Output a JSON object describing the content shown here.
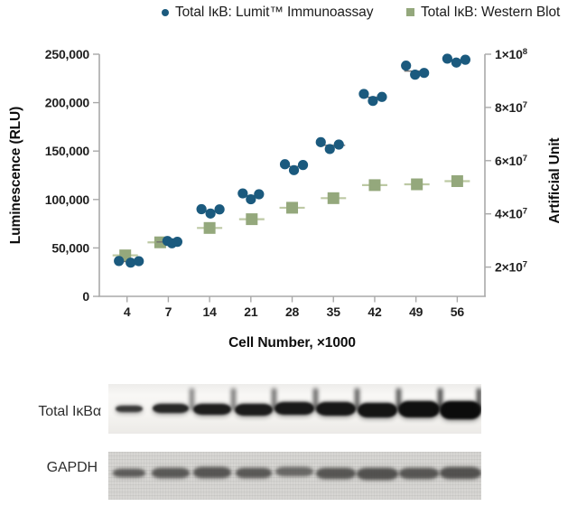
{
  "legend": {
    "items": [
      {
        "label": "Total IκB: Lumit™ Immunoassay",
        "marker": "circle-icon",
        "color": "#1b5a7e"
      },
      {
        "label": "Total IκB: Western Blot",
        "marker": "square-icon",
        "color": "#94a87c"
      }
    ]
  },
  "chart_data": {
    "type": "scatter",
    "grid": false,
    "legend_position": "top",
    "x": {
      "label": "Cell Number, ×1000",
      "categories": [
        "4",
        "7",
        "14",
        "21",
        "28",
        "35",
        "42",
        "49",
        "56"
      ]
    },
    "y_left": {
      "label": "Luminescence (RLU)",
      "range": [
        0,
        250000
      ],
      "tick_values": [
        0,
        50000,
        100000,
        150000,
        200000,
        250000
      ],
      "tick_labels": [
        "0",
        "50,000",
        "100,000",
        "150,000",
        "200,000",
        "250,000"
      ]
    },
    "y_right": {
      "label": "Artificial Unit",
      "range": [
        9000000,
        100000000
      ],
      "tick_values": [
        20000000,
        40000000,
        60000000,
        80000000,
        100000000
      ],
      "tick_labels": [
        {
          "base": "2×10",
          "exp": "7"
        },
        {
          "base": "4×10",
          "exp": "7"
        },
        {
          "base": "6×10",
          "exp": "7"
        },
        {
          "base": "8×10",
          "exp": "7"
        },
        {
          "base": "1×10",
          "exp": "8"
        }
      ]
    },
    "series": [
      {
        "name": "Total IκB: Lumit™ Immunoassay",
        "marker": "circle",
        "axis": "left",
        "color": "#1b5a7e",
        "mean_line_color": "#6f6f6f",
        "replicates": [
          [
            36500,
            34800,
            36300
          ],
          [
            57200,
            54800,
            56300
          ],
          [
            90000,
            85500,
            89800
          ],
          [
            106300,
            100200,
            105400
          ],
          [
            136400,
            130300,
            135600
          ],
          [
            159200,
            152100,
            156700
          ],
          [
            209000,
            201800,
            205900
          ],
          [
            238200,
            228900,
            230700
          ],
          [
            245400,
            241400,
            244300
          ]
        ],
        "jitter_dx": [
          [
            -9,
            4,
            13
          ],
          [
            -1,
            4,
            10
          ],
          [
            -9,
            1,
            11
          ],
          [
            -9,
            0,
            9
          ],
          [
            -8,
            2,
            12
          ],
          [
            -14,
            -4,
            6
          ],
          [
            -12,
            -2,
            8
          ],
          [
            -11,
            -1,
            9
          ],
          [
            -11,
            -1,
            9
          ]
        ]
      },
      {
        "name": "Total IκB: Western Blot",
        "marker": "square",
        "axis": "right",
        "color": "#94a87c",
        "errorbar_color": "#bdc9a4",
        "values": [
          24400000,
          29300000,
          34700000,
          38000000,
          42300000,
          45900000,
          50800000,
          51100000,
          52300000
        ],
        "dx": [
          -2,
          -9,
          0,
          1,
          0,
          0,
          0,
          1,
          0
        ]
      }
    ]
  },
  "blots": {
    "rows": [
      {
        "label": "Total IκBα",
        "band_heights": [
          7,
          10,
          12,
          13,
          14,
          15,
          16,
          18,
          20
        ],
        "band_widths": [
          30,
          40,
          42,
          42,
          44,
          44,
          44,
          46,
          46
        ],
        "band_opacities": [
          0.8,
          0.88,
          0.92,
          0.93,
          0.94,
          0.95,
          0.96,
          0.98,
          1
        ],
        "band_dy": [
          0,
          -1,
          0,
          1,
          -1,
          0,
          1,
          0,
          1
        ]
      },
      {
        "label": "GAPDH",
        "band_heights": [
          9,
          11,
          12,
          11,
          10,
          12,
          13,
          12,
          13
        ],
        "band_widths": [
          36,
          42,
          42,
          40,
          42,
          44,
          46,
          44,
          46
        ],
        "band_opacities": [
          0.78,
          0.8,
          0.82,
          0.8,
          0.7,
          0.82,
          0.85,
          0.82,
          0.85
        ],
        "band_dy": [
          -3,
          -3,
          -4,
          -3,
          -5,
          -3,
          -2,
          -3,
          -3
        ]
      }
    ]
  },
  "colors": {
    "axis": "#a9a9a9",
    "tick_text": "#1f1f1f",
    "axis_title": "#0e0e0e",
    "lumit_blue": "#1b5a7e",
    "western_green": "#94a87c",
    "blot1_bg": "#f5f4f1",
    "blot1_band": "#0c0c0c",
    "blot2_bg": "#d6d5d2",
    "blot2_band": "#3c3b39"
  }
}
